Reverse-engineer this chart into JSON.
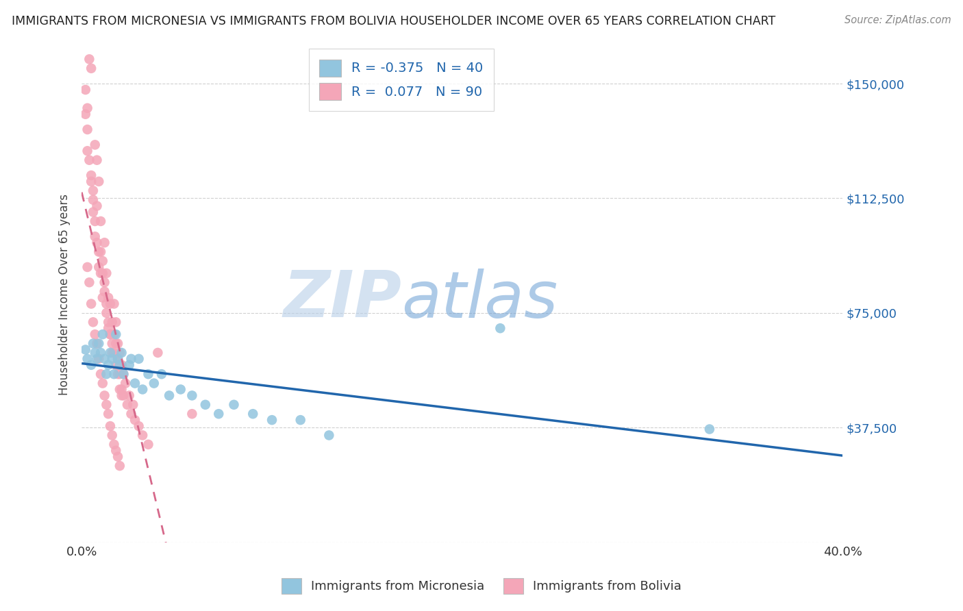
{
  "title": "IMMIGRANTS FROM MICRONESIA VS IMMIGRANTS FROM BOLIVIA HOUSEHOLDER INCOME OVER 65 YEARS CORRELATION CHART",
  "source": "Source: ZipAtlas.com",
  "ylabel": "Householder Income Over 65 years",
  "xlim": [
    0.0,
    0.4
  ],
  "ylim": [
    0,
    162000
  ],
  "yticks": [
    0,
    37500,
    75000,
    112500,
    150000
  ],
  "xticks": [
    0.0,
    0.08,
    0.16,
    0.24,
    0.32,
    0.4
  ],
  "blue_label": "Immigrants from Micronesia",
  "pink_label": "Immigrants from Bolivia",
  "blue_R": -0.375,
  "blue_N": 40,
  "pink_R": 0.077,
  "pink_N": 90,
  "blue_color": "#92c5de",
  "pink_color": "#f4a6b8",
  "blue_line_color": "#2166ac",
  "pink_line_color": "#d6688a",
  "background_color": "#ffffff",
  "micronesia_x": [
    0.002,
    0.003,
    0.005,
    0.006,
    0.007,
    0.008,
    0.009,
    0.01,
    0.011,
    0.012,
    0.013,
    0.014,
    0.015,
    0.016,
    0.017,
    0.018,
    0.019,
    0.02,
    0.021,
    0.022,
    0.025,
    0.026,
    0.028,
    0.03,
    0.032,
    0.035,
    0.038,
    0.042,
    0.046,
    0.052,
    0.058,
    0.065,
    0.072,
    0.08,
    0.09,
    0.1,
    0.115,
    0.13,
    0.22,
    0.33
  ],
  "micronesia_y": [
    63000,
    60000,
    58000,
    65000,
    62000,
    60000,
    65000,
    62000,
    68000,
    60000,
    55000,
    58000,
    62000,
    60000,
    55000,
    68000,
    60000,
    58000,
    62000,
    55000,
    58000,
    60000,
    52000,
    60000,
    50000,
    55000,
    52000,
    55000,
    48000,
    50000,
    48000,
    45000,
    42000,
    45000,
    42000,
    40000,
    40000,
    35000,
    70000,
    37000
  ],
  "bolivia_x": [
    0.002,
    0.003,
    0.003,
    0.004,
    0.004,
    0.005,
    0.005,
    0.006,
    0.006,
    0.007,
    0.007,
    0.008,
    0.008,
    0.009,
    0.009,
    0.01,
    0.01,
    0.011,
    0.011,
    0.012,
    0.012,
    0.013,
    0.013,
    0.014,
    0.014,
    0.015,
    0.015,
    0.016,
    0.016,
    0.017,
    0.017,
    0.018,
    0.018,
    0.019,
    0.019,
    0.02,
    0.02,
    0.021,
    0.021,
    0.022,
    0.022,
    0.023,
    0.024,
    0.025,
    0.026,
    0.027,
    0.028,
    0.03,
    0.032,
    0.035,
    0.002,
    0.003,
    0.004,
    0.005,
    0.006,
    0.007,
    0.008,
    0.009,
    0.01,
    0.011,
    0.012,
    0.013,
    0.014,
    0.015,
    0.016,
    0.017,
    0.018,
    0.019,
    0.02,
    0.021,
    0.003,
    0.004,
    0.005,
    0.006,
    0.007,
    0.008,
    0.009,
    0.01,
    0.011,
    0.012,
    0.013,
    0.014,
    0.015,
    0.016,
    0.017,
    0.018,
    0.019,
    0.02,
    0.04,
    0.058
  ],
  "bolivia_y": [
    148000,
    142000,
    135000,
    125000,
    165000,
    155000,
    120000,
    115000,
    108000,
    130000,
    100000,
    125000,
    110000,
    95000,
    118000,
    88000,
    105000,
    92000,
    80000,
    98000,
    85000,
    88000,
    75000,
    80000,
    70000,
    78000,
    68000,
    72000,
    62000,
    68000,
    78000,
    65000,
    72000,
    60000,
    65000,
    62000,
    55000,
    58000,
    50000,
    55000,
    48000,
    52000,
    45000,
    48000,
    42000,
    45000,
    40000,
    38000,
    35000,
    32000,
    140000,
    128000,
    158000,
    118000,
    112000,
    105000,
    98000,
    90000,
    95000,
    88000,
    82000,
    78000,
    72000,
    68000,
    65000,
    62000,
    58000,
    55000,
    50000,
    48000,
    90000,
    85000,
    78000,
    72000,
    68000,
    65000,
    60000,
    55000,
    52000,
    48000,
    45000,
    42000,
    38000,
    35000,
    32000,
    30000,
    28000,
    25000,
    62000,
    42000
  ]
}
